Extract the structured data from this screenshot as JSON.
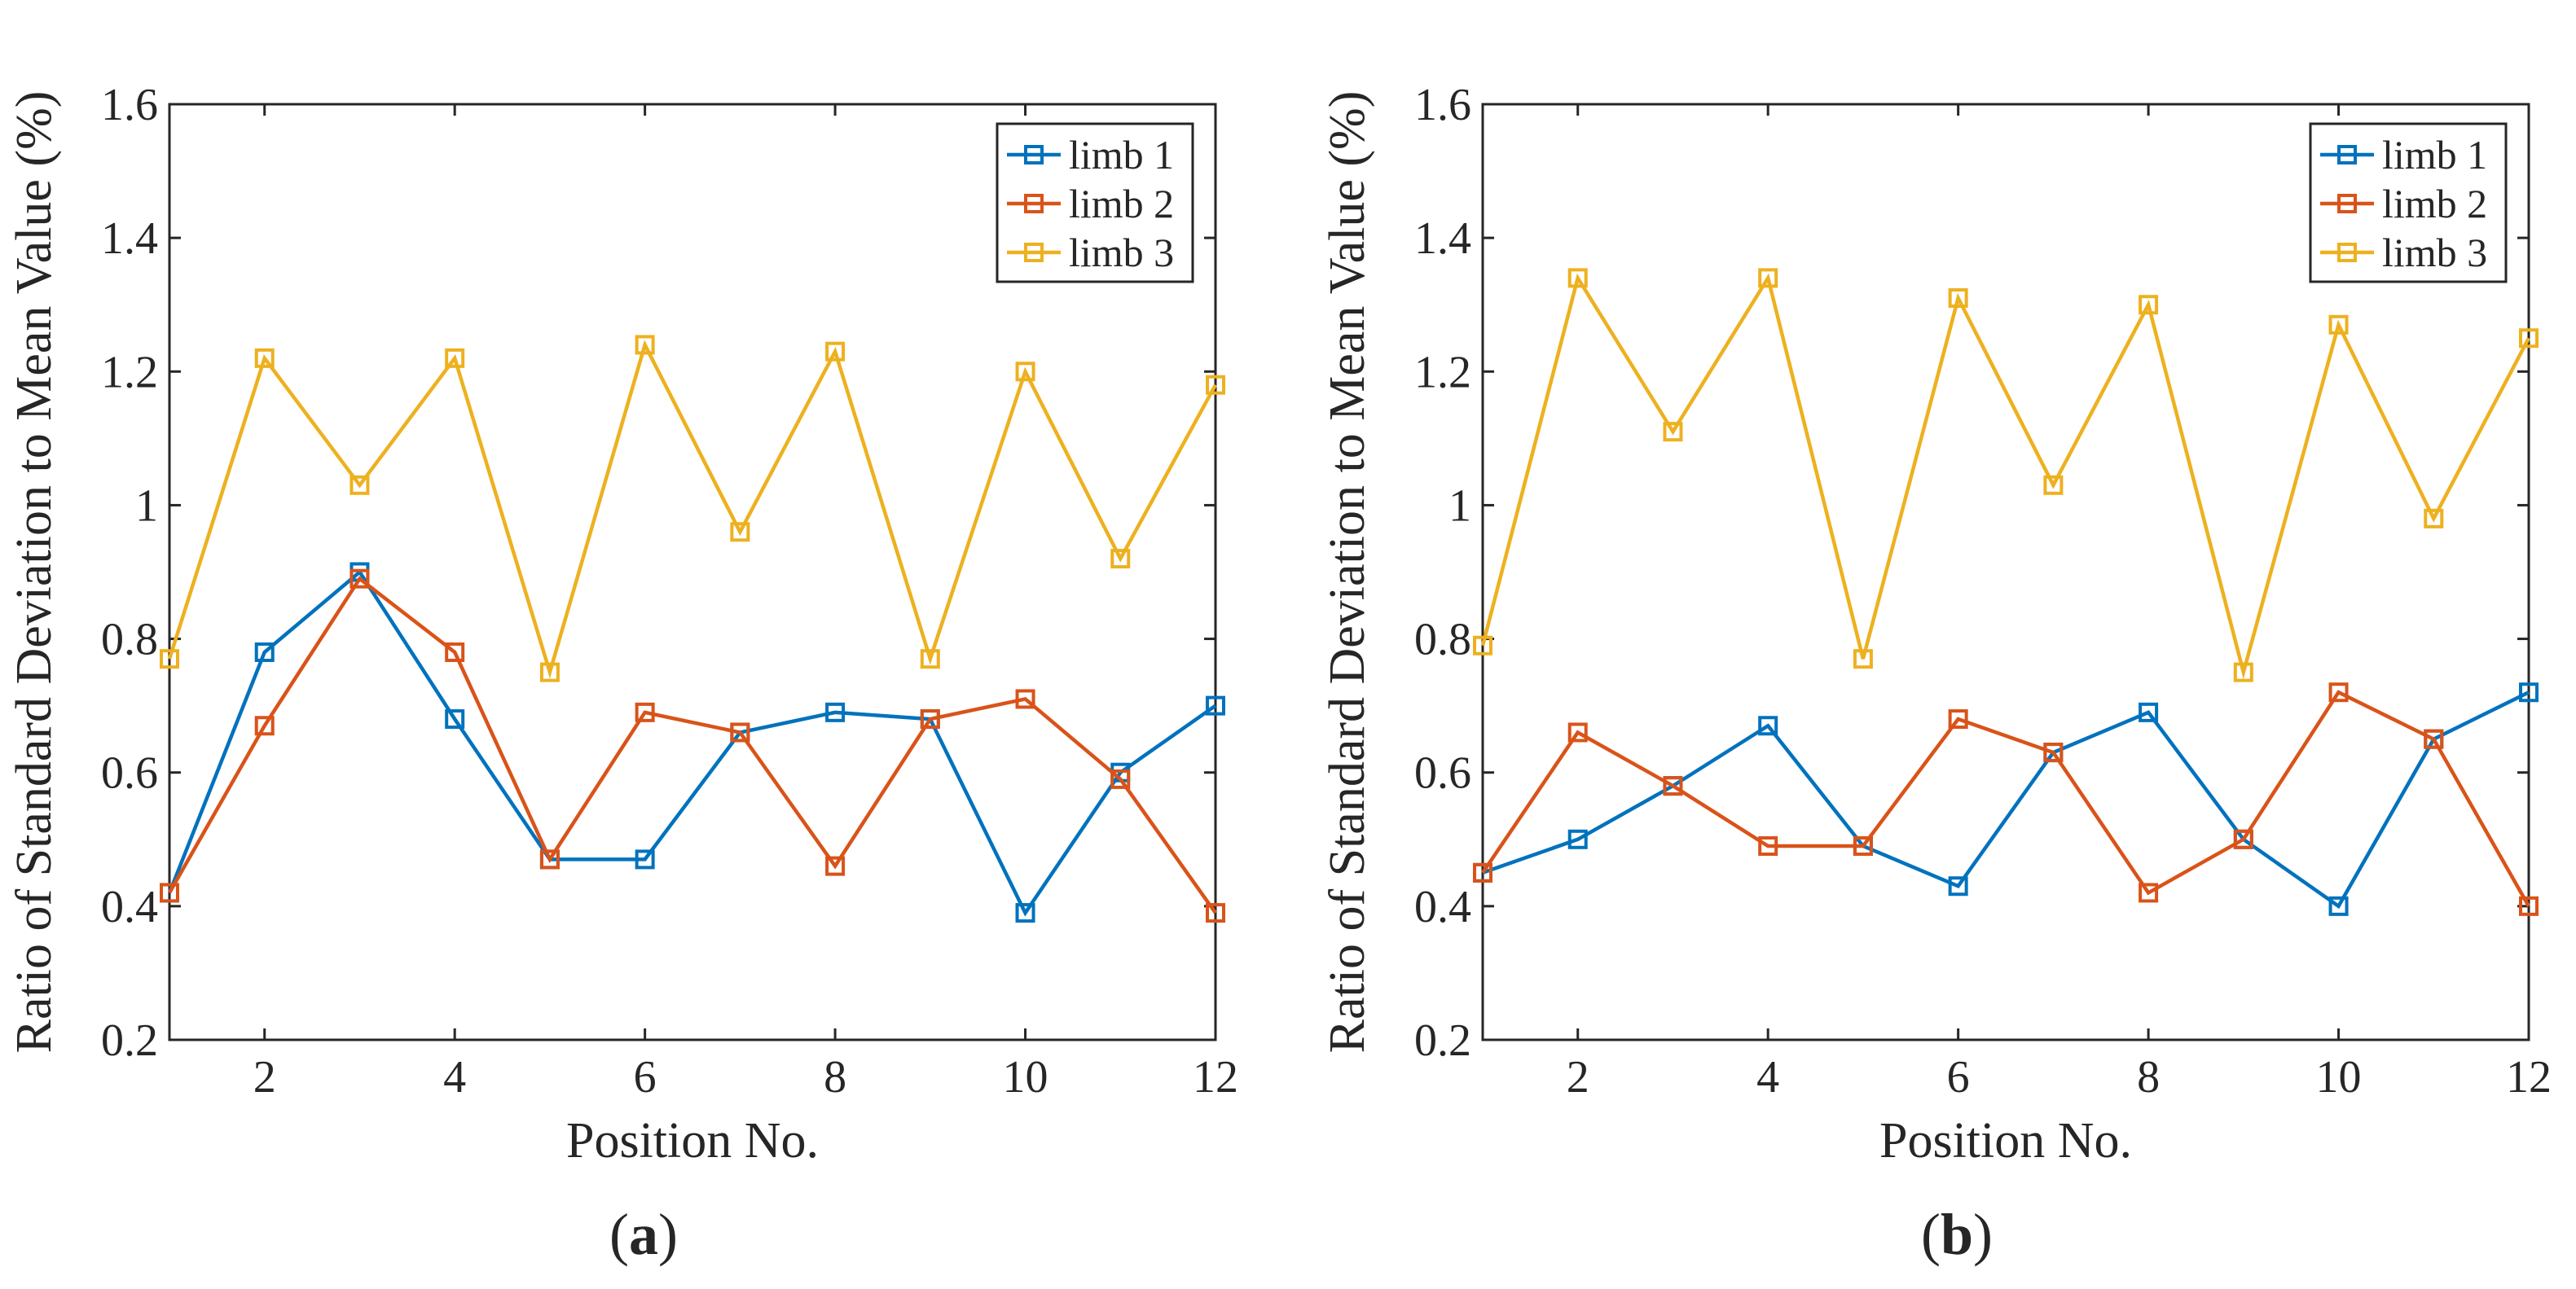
{
  "chart_data": [
    {
      "type": "line",
      "caption": "(a)",
      "caption_letter": "a",
      "xlabel": "Position No.",
      "ylabel": "Ratio of Standard Deviation to Mean Value (%)",
      "xlim": [
        1,
        12
      ],
      "ylim": [
        0.2,
        1.6
      ],
      "xticks": [
        2,
        4,
        6,
        8,
        10,
        12
      ],
      "yticks": [
        0.2,
        0.4,
        0.6,
        0.8,
        1,
        1.2,
        1.4,
        1.6
      ],
      "yticklabels": [
        "0.2",
        "0.4",
        "0.6",
        "0.8",
        "1",
        "1.2",
        "1.4",
        "1.6"
      ],
      "x": [
        1,
        2,
        3,
        4,
        5,
        6,
        7,
        8,
        9,
        10,
        11,
        12
      ],
      "legend_position": "top-right",
      "grid": false,
      "series": [
        {
          "name": "limb 1",
          "color": "#0072BD",
          "marker": "square",
          "values": [
            0.42,
            0.78,
            0.9,
            0.68,
            0.47,
            0.47,
            0.66,
            0.69,
            0.68,
            0.39,
            0.6,
            0.7
          ]
        },
        {
          "name": "limb 2",
          "color": "#D95319",
          "marker": "square",
          "values": [
            0.42,
            0.67,
            0.89,
            0.78,
            0.47,
            0.69,
            0.66,
            0.46,
            0.68,
            0.71,
            0.59,
            0.39
          ]
        },
        {
          "name": "limb 3",
          "color": "#EDB120",
          "marker": "square",
          "values": [
            0.77,
            1.22,
            1.03,
            1.22,
            0.75,
            1.24,
            0.96,
            1.23,
            0.77,
            1.2,
            0.92,
            1.18
          ]
        }
      ]
    },
    {
      "type": "line",
      "caption": "(b)",
      "caption_letter": "b",
      "xlabel": "Position No.",
      "ylabel": "Ratio of Standard Deviation to Mean Value (%)",
      "xlim": [
        1,
        12
      ],
      "ylim": [
        0.2,
        1.6
      ],
      "xticks": [
        2,
        4,
        6,
        8,
        10,
        12
      ],
      "yticks": [
        0.2,
        0.4,
        0.6,
        0.8,
        1,
        1.2,
        1.4,
        1.6
      ],
      "yticklabels": [
        "0.2",
        "0.4",
        "0.6",
        "0.8",
        "1",
        "1.2",
        "1.4",
        "1.6"
      ],
      "x": [
        1,
        2,
        3,
        4,
        5,
        6,
        7,
        8,
        9,
        10,
        11,
        12
      ],
      "legend_position": "top-right",
      "grid": false,
      "series": [
        {
          "name": "limb 1",
          "color": "#0072BD",
          "marker": "square",
          "values": [
            0.45,
            0.5,
            0.58,
            0.67,
            0.49,
            0.43,
            0.63,
            0.69,
            0.5,
            0.4,
            0.65,
            0.72
          ]
        },
        {
          "name": "limb 2",
          "color": "#D95319",
          "marker": "square",
          "values": [
            0.45,
            0.66,
            0.58,
            0.49,
            0.49,
            0.68,
            0.63,
            0.42,
            0.5,
            0.72,
            0.65,
            0.4
          ]
        },
        {
          "name": "limb 3",
          "color": "#EDB120",
          "marker": "square",
          "values": [
            0.79,
            1.34,
            1.11,
            1.34,
            0.77,
            1.31,
            1.03,
            1.3,
            0.75,
            1.27,
            0.98,
            1.25
          ]
        }
      ]
    }
  ]
}
